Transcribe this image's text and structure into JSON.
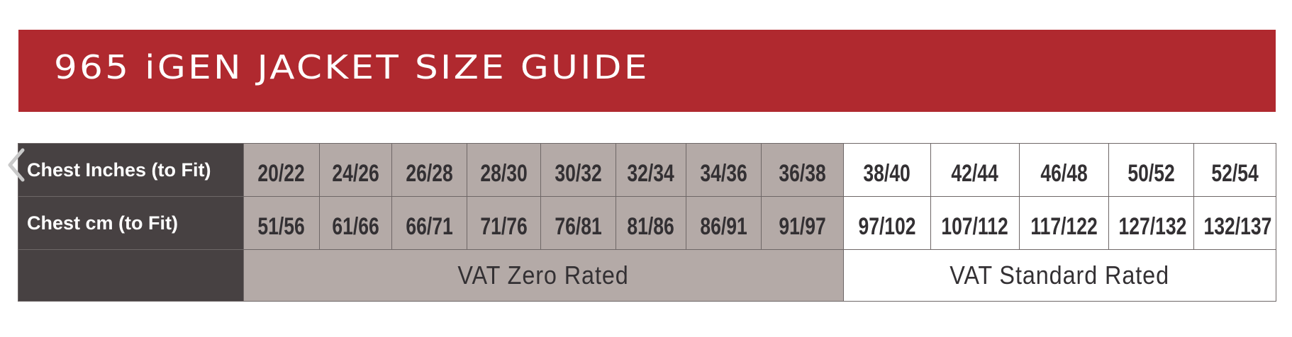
{
  "title": "965 iGEN JACKET SIZE GUIDE",
  "colors": {
    "banner": "#b0292f",
    "header_col": "#474142",
    "zero_rated": "#b4aaa7",
    "standard_rated": "#ffffff"
  },
  "carousel": {
    "prev_icon": "chevron-left-icon"
  },
  "table": {
    "rows": [
      {
        "label": "Chest Inches (to Fit)",
        "values": [
          "20/22",
          "24/26",
          "26/28",
          "28/30",
          "30/32",
          "32/34",
          "34/36",
          "36/38",
          "38/40",
          "42/44",
          "46/48",
          "50/52",
          "52/54"
        ]
      },
      {
        "label": "Chest cm (to Fit)",
        "values": [
          "51/56",
          "61/66",
          "66/71",
          "71/76",
          "76/81",
          "81/86",
          "86/91",
          "91/97",
          "97/102",
          "107/112",
          "117/122",
          "127/132",
          "132/137"
        ]
      }
    ],
    "vat_zero_label": "VAT Zero Rated",
    "vat_standard_label": "VAT Standard Rated",
    "vat_zero_columns": 8,
    "vat_standard_columns": 5
  }
}
